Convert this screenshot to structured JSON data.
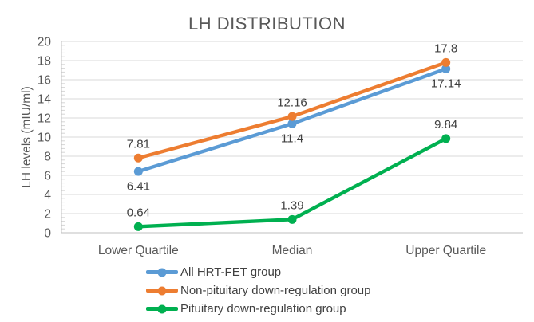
{
  "figure": {
    "background": "#ffffff",
    "border_color": "#d2d2d2"
  },
  "chart_data": {
    "type": "line",
    "title": "LH DISTRIBUTION",
    "ylabel": "LH levels (mIU/ml)",
    "xlabel": "",
    "categories": [
      "Lower Quartile",
      "Median",
      "Upper Quartile"
    ],
    "series": [
      {
        "name": "All HRT-FET group",
        "color": "#5B9BD5",
        "values": [
          6.41,
          11.4,
          17.14
        ],
        "data_labels": [
          "6.41",
          "11.4",
          "17.14"
        ],
        "label_position": "below"
      },
      {
        "name": "Non-pituitary down-regulation group",
        "color": "#ED7D31",
        "values": [
          7.81,
          12.16,
          17.8
        ],
        "data_labels": [
          "7.81",
          "12.16",
          "17.8"
        ],
        "label_position": "above"
      },
      {
        "name": "Pituitary down-regulation group",
        "color": "#00B050",
        "values": [
          0.64,
          1.39,
          9.84
        ],
        "data_labels": [
          "0.64",
          "1.39",
          "9.84"
        ],
        "label_position": "above"
      }
    ],
    "ylim": [
      0,
      20
    ],
    "ytick_step": 2,
    "yticks": [
      0,
      2,
      4,
      6,
      8,
      10,
      12,
      14,
      16,
      18,
      20
    ],
    "grid": true,
    "legend_position": "bottom",
    "colors": {
      "grid": "#D9D9D9",
      "axis": "#BFBFBF",
      "minor_tick": "#D6D6D6",
      "tick_text": "#595959",
      "title_text": "#595959",
      "data_label_text": "#404040",
      "legend_text": "#404040"
    }
  }
}
